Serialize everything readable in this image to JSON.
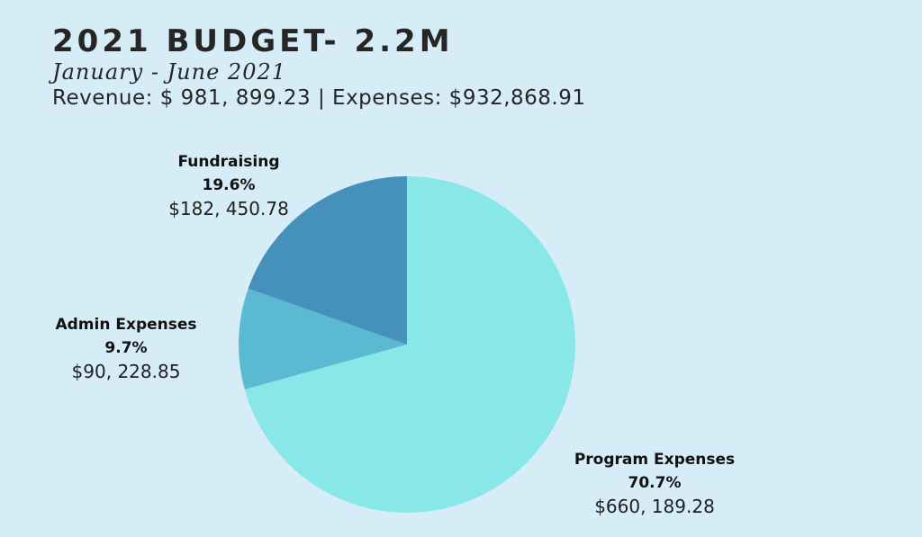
{
  "title": "2021 BUDGET- 2.2M",
  "subtitle": "January - June 2021",
  "summary": "Revenue: $ 981, 899.23  | Expenses: $932,868.91",
  "chart_data": {
    "type": "pie",
    "slices": [
      {
        "label": "Program Expenses",
        "percent_label": "70.7%",
        "amount": "$660, 189.28",
        "value": 70.7,
        "color": "#88e8e8"
      },
      {
        "label": "Admin Expenses",
        "percent_label": "9.7%",
        "amount": "$90, 228.85",
        "value": 9.7,
        "color": "#5bb9d1"
      },
      {
        "label": "Fundraising",
        "percent_label": "19.6%",
        "amount": "$182, 450.78",
        "value": 19.6,
        "color": "#4691bb"
      }
    ],
    "start_angle_deg": 0,
    "direction": "clockwise"
  }
}
